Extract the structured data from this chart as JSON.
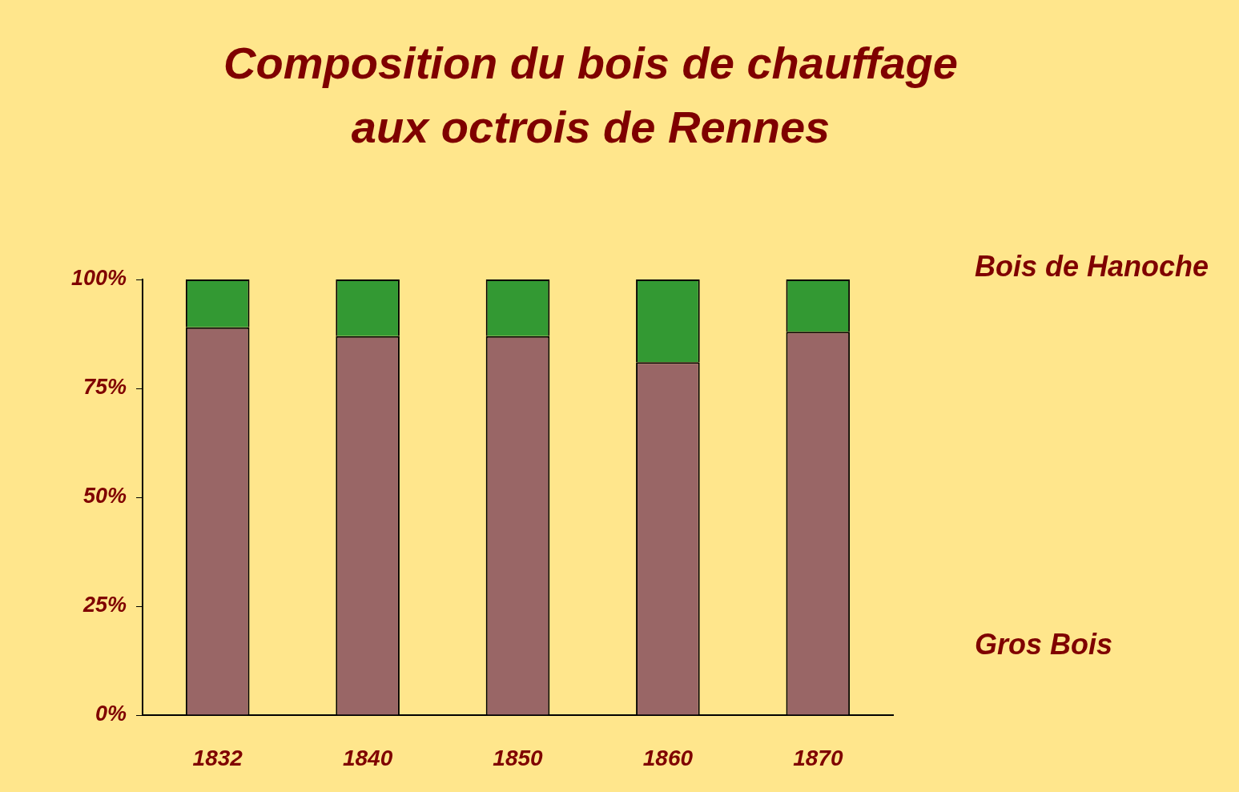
{
  "chart_data": {
    "type": "bar",
    "title": "Composition du bois de chauffage\naux octrois de Rennes",
    "categories": [
      "1832",
      "1840",
      "1850",
      "1860",
      "1870"
    ],
    "series": [
      {
        "name": "Gros Bois",
        "color": "#996666",
        "values": [
          89,
          87,
          87,
          81,
          88
        ]
      },
      {
        "name": "Bois de Hanoche",
        "color": "#339933",
        "values": [
          11,
          13,
          13,
          19,
          12
        ]
      }
    ],
    "stacked": true,
    "ylim": [
      0,
      100
    ],
    "yticks": [
      {
        "value": 0,
        "label": "0%"
      },
      {
        "value": 25,
        "label": "25%"
      },
      {
        "value": 50,
        "label": "50%"
      },
      {
        "value": 75,
        "label": "75%"
      },
      {
        "value": 100,
        "label": "100%"
      }
    ],
    "grid": false,
    "legend": "right"
  }
}
